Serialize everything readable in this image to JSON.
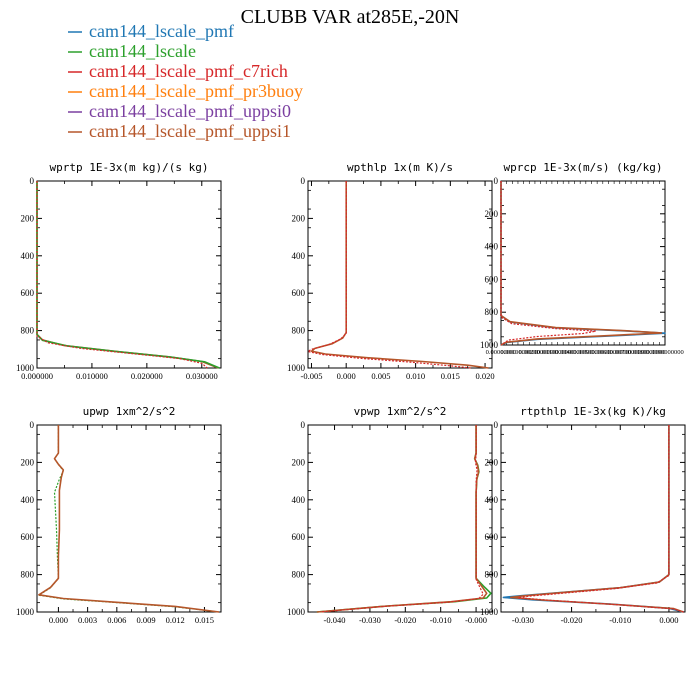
{
  "title": "CLUBB VAR at285E,-20N",
  "legend": [
    {
      "name": "cam144_lscale_pmf",
      "color": "#1f77b4"
    },
    {
      "name": "cam144_lscale",
      "color": "#2ca02c"
    },
    {
      "name": "cam144_lscale_pmf_c7rich",
      "color": "#d62728"
    },
    {
      "name": "cam144_lscale_pmf_pr3buoy",
      "color": "#ff7f0e"
    },
    {
      "name": "cam144_lscale_pmf_uppsi0",
      "color": "#7b3fa0"
    },
    {
      "name": "cam144_lscale_pmf_uppsi1",
      "color": "#b5562a"
    }
  ],
  "chart_data": [
    {
      "type": "line",
      "id": "wprtp",
      "title": "wprtp  1E-3x(m kg)/(s kg)",
      "xlim": [
        0,
        0.0335
      ],
      "ylim": [
        1000,
        0
      ],
      "xticks": [
        0,
        0.01,
        0.02,
        0.03
      ],
      "xtick_labels": [
        "0.000000",
        "0.010000",
        "0.020000",
        "0.030000"
      ],
      "yticks": [
        0,
        200,
        400,
        600,
        800,
        1000
      ],
      "ytick_labels": [
        "0",
        "200",
        "400",
        "600",
        "800",
        "1000"
      ],
      "series": [
        {
          "color": "#b5562a",
          "dash": false,
          "points": [
            [
              0,
              0
            ],
            [
              0,
              820
            ],
            [
              0.001,
              850
            ],
            [
              0.005,
              880
            ],
            [
              0.014,
              910
            ],
            [
              0.024,
              940
            ],
            [
              0.03,
              965
            ],
            [
              0.033,
              1000
            ]
          ]
        },
        {
          "color": "#2ca02c",
          "dash": false,
          "points": [
            [
              0,
              0
            ],
            [
              0,
              822
            ],
            [
              0.001,
              852
            ],
            [
              0.0055,
              882
            ],
            [
              0.0145,
              912
            ],
            [
              0.0245,
              942
            ],
            [
              0.0305,
              967
            ],
            [
              0.0332,
              1000
            ]
          ]
        },
        {
          "color": "#d62728",
          "dash": true,
          "points": [
            [
              0,
              0
            ],
            [
              0,
              830
            ],
            [
              0.002,
              865
            ],
            [
              0.008,
              895
            ],
            [
              0.018,
              925
            ],
            [
              0.026,
              950
            ],
            [
              0.03,
              975
            ],
            [
              0.031,
              1000
            ]
          ]
        }
      ]
    },
    {
      "type": "line",
      "id": "wpthlp",
      "title": "wpthlp  1x(m K)/s",
      "xlim": [
        -0.0055,
        0.021
      ],
      "ylim": [
        1000,
        0
      ],
      "xticks": [
        -0.005,
        0,
        0.005,
        0.01,
        0.015,
        0.02
      ],
      "xtick_labels": [
        "-0.005",
        "0.000",
        "0.005",
        "0.010",
        "0.015",
        "0.020"
      ],
      "yticks": [
        0,
        200,
        400,
        600,
        800,
        1000
      ],
      "ytick_labels": [
        "0",
        "200",
        "400",
        "600",
        "800",
        "1000"
      ],
      "series": [
        {
          "color": "#b5562a",
          "dash": false,
          "points": [
            [
              0,
              0
            ],
            [
              0,
              810
            ],
            [
              -0.0005,
              840
            ],
            [
              -0.002,
              870
            ],
            [
              -0.0045,
              895
            ],
            [
              -0.005,
              910
            ],
            [
              -0.003,
              925
            ],
            [
              0.003,
              945
            ],
            [
              0.011,
              965
            ],
            [
              0.0175,
              985
            ],
            [
              0.0205,
              1000
            ]
          ]
        },
        {
          "color": "#d62728",
          "dash": true,
          "points": [
            [
              0,
              0
            ],
            [
              0,
              815
            ],
            [
              -0.0008,
              845
            ],
            [
              -0.0025,
              875
            ],
            [
              -0.005,
              900
            ],
            [
              -0.0055,
              912
            ],
            [
              -0.0035,
              928
            ],
            [
              0.002,
              948
            ],
            [
              0.009,
              968
            ],
            [
              0.015,
              988
            ],
            [
              0.018,
              1000
            ]
          ]
        }
      ]
    },
    {
      "type": "line",
      "id": "wprcp",
      "title": "wprcp  1E-3x(m/s) (kg/kg)",
      "xlim": [
        0,
        0.009
      ],
      "ylim": [
        1000,
        0
      ],
      "xtick_labels": [
        "0.00000000",
        "0.0010000000",
        "0.0020000000",
        "0.0030000000",
        "0.0040000000",
        "0.0050000000",
        "0.0060000000",
        "0.0070000000",
        "0.0080000000",
        "0.0090000000"
      ],
      "yticks": [
        0,
        200,
        400,
        600,
        800,
        1000
      ],
      "ytick_labels": [
        "0",
        "200",
        "400",
        "600",
        "800",
        "1000"
      ],
      "series": [
        {
          "color": "#1f77b4",
          "dash": false,
          "points": [
            [
              0,
              0
            ],
            [
              0,
              820
            ],
            [
              0.0005,
              860
            ],
            [
              0.003,
              895
            ],
            [
              0.007,
              915
            ],
            [
              0.009,
              928
            ],
            [
              0.006,
              945
            ],
            [
              0.002,
              965
            ],
            [
              0.0003,
              985
            ],
            [
              0,
              1000
            ]
          ]
        },
        {
          "color": "#b5562a",
          "dash": false,
          "points": [
            [
              0,
              0
            ],
            [
              0,
              820
            ],
            [
              0.0005,
              858
            ],
            [
              0.003,
              893
            ],
            [
              0.0068,
              913
            ],
            [
              0.0088,
              926
            ],
            [
              0.0058,
              943
            ],
            [
              0.002,
              963
            ],
            [
              0.0003,
              983
            ],
            [
              0,
              1000
            ]
          ]
        },
        {
          "color": "#d62728",
          "dash": true,
          "points": [
            [
              0,
              0
            ],
            [
              0,
              830
            ],
            [
              0.0006,
              870
            ],
            [
              0.003,
              900
            ],
            [
              0.0052,
              915
            ],
            [
              0.0045,
              930
            ],
            [
              0.002,
              948
            ],
            [
              0.0004,
              970
            ],
            [
              0,
              1000
            ]
          ]
        }
      ]
    },
    {
      "type": "line",
      "id": "upwp",
      "title": "upwp  1xm^2/s^2",
      "xlim": [
        -0.0022,
        0.0167
      ],
      "ylim": [
        1000,
        0
      ],
      "xticks": [
        0,
        0.003,
        0.006,
        0.009,
        0.012,
        0.015
      ],
      "xtick_labels": [
        "0.000",
        "0.003",
        "0.006",
        "0.009",
        "0.012",
        "0.015"
      ],
      "yticks": [
        0,
        200,
        400,
        600,
        800,
        1000
      ],
      "ytick_labels": [
        "0",
        "200",
        "400",
        "600",
        "800",
        "1000"
      ],
      "series": [
        {
          "color": "#2ca02c",
          "dash": true,
          "points": [
            [
              0,
              0
            ],
            [
              0,
              150
            ],
            [
              -0.0004,
              180
            ],
            [
              0,
              210
            ],
            [
              0.0005,
              245
            ],
            [
              0.0001,
              290
            ],
            [
              -0.0004,
              360
            ],
            [
              -0.0003,
              460
            ],
            [
              -0.0002,
              560
            ],
            [
              -0.0001,
              700
            ],
            [
              0,
              820
            ],
            [
              -0.0008,
              870
            ],
            [
              -0.002,
              910
            ],
            [
              0.0005,
              930
            ],
            [
              0.006,
              950
            ],
            [
              0.012,
              972
            ],
            [
              0.0165,
              1000
            ]
          ]
        },
        {
          "color": "#b5562a",
          "dash": false,
          "points": [
            [
              0,
              0
            ],
            [
              0,
              150
            ],
            [
              -0.0004,
              180
            ],
            [
              0,
              210
            ],
            [
              0.0005,
              240
            ],
            [
              0.0003,
              280
            ],
            [
              0.0001,
              350
            ],
            [
              0.0001,
              450
            ],
            [
              0.0001,
              560
            ],
            [
              0,
              700
            ],
            [
              0,
              820
            ],
            [
              -0.0008,
              868
            ],
            [
              -0.002,
              908
            ],
            [
              0.0005,
              928
            ],
            [
              0.006,
              948
            ],
            [
              0.012,
              970
            ],
            [
              0.0165,
              1000
            ]
          ]
        }
      ]
    },
    {
      "type": "line",
      "id": "vpwp",
      "title": "vpwp  1xm^2/s^2",
      "xlim": [
        -0.0475,
        0.0045
      ],
      "ylim": [
        1000,
        0
      ],
      "xticks": [
        -0.04,
        -0.03,
        -0.02,
        -0.01,
        0
      ],
      "xtick_labels": [
        "-0.040",
        "-0.030",
        "-0.020",
        "-0.010",
        "-0.000"
      ],
      "yticks": [
        0,
        200,
        400,
        600,
        800,
        1000
      ],
      "ytick_labels": [
        "0",
        "200",
        "400",
        "600",
        "800",
        "1000"
      ],
      "series": [
        {
          "color": "#2ca02c",
          "dash": false,
          "points": [
            [
              0,
              0
            ],
            [
              0,
              150
            ],
            [
              -0.0004,
              180
            ],
            [
              0.0005,
              215
            ],
            [
              0.0008,
              250
            ],
            [
              0.0002,
              290
            ],
            [
              0,
              360
            ],
            [
              0,
              500
            ],
            [
              0,
              700
            ],
            [
              0,
              820
            ],
            [
              0.002,
              860
            ],
            [
              0.0042,
              900
            ],
            [
              0.003,
              925
            ],
            [
              -0.006,
              945
            ],
            [
              -0.025,
              968
            ],
            [
              -0.045,
              1000
            ]
          ]
        },
        {
          "color": "#b5562a",
          "dash": false,
          "points": [
            [
              0,
              0
            ],
            [
              0,
              150
            ],
            [
              -0.0004,
              180
            ],
            [
              0.0004,
              215
            ],
            [
              0.0007,
              250
            ],
            [
              0.0002,
              290
            ],
            [
              0,
              360
            ],
            [
              0,
              500
            ],
            [
              0,
              700
            ],
            [
              0,
              820
            ],
            [
              0.0015,
              860
            ],
            [
              0.003,
              900
            ],
            [
              0.002,
              925
            ],
            [
              -0.007,
              945
            ],
            [
              -0.025,
              968
            ],
            [
              -0.045,
              1000
            ]
          ]
        },
        {
          "color": "#d62728",
          "dash": true,
          "points": [
            [
              0,
              0
            ],
            [
              0,
              160
            ],
            [
              -0.0002,
              200
            ],
            [
              0.0003,
              240
            ],
            [
              0,
              300
            ],
            [
              0,
              500
            ],
            [
              0,
              700
            ],
            [
              0,
              825
            ],
            [
              0.001,
              865
            ],
            [
              0.002,
              905
            ],
            [
              0.0008,
              928
            ],
            [
              -0.008,
              948
            ],
            [
              -0.026,
              970
            ],
            [
              -0.044,
              1000
            ]
          ]
        }
      ]
    },
    {
      "type": "line",
      "id": "rtpthlp",
      "title": "rtpthlp  1E-3x(kg K)/kg",
      "xlim": [
        -0.0345,
        0.0033
      ],
      "ylim": [
        1000,
        0
      ],
      "xticks": [
        -0.03,
        -0.02,
        -0.01,
        0
      ],
      "xtick_labels": [
        "-0.030",
        "-0.020",
        "-0.010",
        "0.000"
      ],
      "yticks": [
        0,
        200,
        400,
        600,
        800,
        1000
      ],
      "ytick_labels": [
        "0",
        "200",
        "400",
        "600",
        "800",
        "1000"
      ],
      "series": [
        {
          "color": "#1f77b4",
          "dash": false,
          "points": [
            [
              0,
              0
            ],
            [
              0,
              800
            ],
            [
              -0.002,
              840
            ],
            [
              -0.01,
              870
            ],
            [
              -0.022,
              895
            ],
            [
              -0.03,
              912
            ],
            [
              -0.034,
              922
            ],
            [
              -0.028,
              935
            ],
            [
              -0.012,
              958
            ],
            [
              0,
              980
            ],
            [
              0.003,
              1000
            ]
          ]
        },
        {
          "color": "#b5562a",
          "dash": false,
          "points": [
            [
              0,
              0
            ],
            [
              0,
              800
            ],
            [
              -0.002,
              840
            ],
            [
              -0.01,
              870
            ],
            [
              -0.022,
              896
            ],
            [
              -0.03,
              914
            ],
            [
              -0.0325,
              922
            ],
            [
              -0.026,
              936
            ],
            [
              -0.011,
              960
            ],
            [
              0.001,
              982
            ],
            [
              0.003,
              1000
            ]
          ]
        },
        {
          "color": "#d62728",
          "dash": true,
          "points": [
            [
              0,
              0
            ],
            [
              0,
              805
            ],
            [
              -0.0025,
              845
            ],
            [
              -0.011,
              875
            ],
            [
              -0.022,
              900
            ],
            [
              -0.029,
              916
            ],
            [
              -0.031,
              924
            ],
            [
              -0.024,
              938
            ],
            [
              -0.01,
              962
            ],
            [
              0.001,
              984
            ],
            [
              0.003,
              1000
            ]
          ]
        }
      ]
    }
  ]
}
